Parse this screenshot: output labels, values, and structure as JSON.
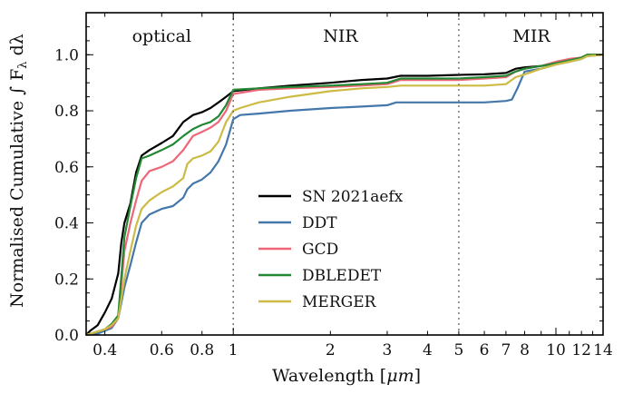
{
  "chart_data": {
    "type": "line",
    "xscale": "log",
    "xlim": [
      0.35,
      14
    ],
    "ylim": [
      0.0,
      1.15
    ],
    "xlabel": "Wavelength [",
    "xlabel_unit": "μm",
    "xlabel_end": "]",
    "ylabel": "Normalised Cumulative ",
    "ylabel_integral": "∫ F",
    "ylabel_sub": "λ",
    "ylabel_end": " dλ",
    "grid": false,
    "legend_position": "center",
    "x_major_ticks": [
      1,
      10
    ],
    "x_tick_labels": [
      {
        "value": 0.4,
        "label": "0.4"
      },
      {
        "value": 0.6,
        "label": "0.6"
      },
      {
        "value": 0.8,
        "label": "0.8"
      },
      {
        "value": 1,
        "label": "1"
      },
      {
        "value": 2,
        "label": "2"
      },
      {
        "value": 3,
        "label": "3"
      },
      {
        "value": 4,
        "label": "4"
      },
      {
        "value": 5,
        "label": "5"
      },
      {
        "value": 6,
        "label": "6"
      },
      {
        "value": 7,
        "label": "7"
      },
      {
        "value": 8,
        "label": "8"
      },
      {
        "value": 10,
        "label": "10"
      },
      {
        "value": 12,
        "label": "12"
      },
      {
        "value": 14,
        "label": "14"
      }
    ],
    "y_tick_labels": [
      {
        "value": 0.0,
        "label": "0.0"
      },
      {
        "value": 0.2,
        "label": "0.2"
      },
      {
        "value": 0.4,
        "label": "0.4"
      },
      {
        "value": 0.6,
        "label": "0.6"
      },
      {
        "value": 0.8,
        "label": "0.8"
      },
      {
        "value": 1.0,
        "label": "1.0"
      }
    ],
    "y_minor_step": 0.05,
    "region_boundaries": [
      1,
      5
    ],
    "regions": [
      {
        "name": "optical",
        "center": 0.6
      },
      {
        "name": "NIR",
        "center": 2.15
      },
      {
        "name": "MIR",
        "center": 8.4
      }
    ],
    "series": [
      {
        "name": "SN 2021aefx",
        "color": "#000000",
        "points": [
          [
            0.35,
            0.0
          ],
          [
            0.36,
            0.015
          ],
          [
            0.38,
            0.035
          ],
          [
            0.4,
            0.08
          ],
          [
            0.42,
            0.13
          ],
          [
            0.44,
            0.22
          ],
          [
            0.45,
            0.33
          ],
          [
            0.46,
            0.4
          ],
          [
            0.48,
            0.47
          ],
          [
            0.5,
            0.58
          ],
          [
            0.52,
            0.64
          ],
          [
            0.55,
            0.66
          ],
          [
            0.6,
            0.685
          ],
          [
            0.65,
            0.71
          ],
          [
            0.7,
            0.76
          ],
          [
            0.75,
            0.785
          ],
          [
            0.8,
            0.795
          ],
          [
            0.85,
            0.81
          ],
          [
            0.9,
            0.83
          ],
          [
            0.95,
            0.85
          ],
          [
            1.0,
            0.87
          ],
          [
            1.2,
            0.88
          ],
          [
            1.5,
            0.89
          ],
          [
            2.0,
            0.9
          ],
          [
            2.5,
            0.91
          ],
          [
            3.0,
            0.915
          ],
          [
            3.3,
            0.925
          ],
          [
            4.0,
            0.925
          ],
          [
            5.0,
            0.928
          ],
          [
            6.0,
            0.93
          ],
          [
            7.0,
            0.935
          ],
          [
            7.5,
            0.95
          ],
          [
            8.0,
            0.955
          ],
          [
            9.0,
            0.96
          ],
          [
            10.0,
            0.97
          ],
          [
            11.0,
            0.98
          ],
          [
            12.0,
            0.99
          ],
          [
            12.5,
            1.0
          ],
          [
            14.0,
            1.0
          ]
        ]
      },
      {
        "name": "DDT",
        "color": "#4477aa",
        "points": [
          [
            0.35,
            0.0
          ],
          [
            0.38,
            0.005
          ],
          [
            0.4,
            0.015
          ],
          [
            0.42,
            0.025
          ],
          [
            0.44,
            0.06
          ],
          [
            0.46,
            0.17
          ],
          [
            0.48,
            0.25
          ],
          [
            0.5,
            0.33
          ],
          [
            0.52,
            0.4
          ],
          [
            0.55,
            0.43
          ],
          [
            0.6,
            0.45
          ],
          [
            0.65,
            0.46
          ],
          [
            0.7,
            0.49
          ],
          [
            0.72,
            0.52
          ],
          [
            0.75,
            0.54
          ],
          [
            0.8,
            0.555
          ],
          [
            0.85,
            0.58
          ],
          [
            0.9,
            0.62
          ],
          [
            0.95,
            0.68
          ],
          [
            1.0,
            0.77
          ],
          [
            1.05,
            0.785
          ],
          [
            1.2,
            0.79
          ],
          [
            1.5,
            0.8
          ],
          [
            2.0,
            0.81
          ],
          [
            2.5,
            0.815
          ],
          [
            3.0,
            0.82
          ],
          [
            3.2,
            0.83
          ],
          [
            4.0,
            0.83
          ],
          [
            5.0,
            0.83
          ],
          [
            6.0,
            0.83
          ],
          [
            7.0,
            0.835
          ],
          [
            7.3,
            0.84
          ],
          [
            7.6,
            0.88
          ],
          [
            8.0,
            0.94
          ],
          [
            9.0,
            0.95
          ],
          [
            10.0,
            0.965
          ],
          [
            11.0,
            0.975
          ],
          [
            12.0,
            0.985
          ],
          [
            12.5,
            0.995
          ],
          [
            14.0,
            1.0
          ]
        ]
      },
      {
        "name": "GCD",
        "color": "#ee6677",
        "points": [
          [
            0.35,
            0.0
          ],
          [
            0.4,
            0.02
          ],
          [
            0.42,
            0.03
          ],
          [
            0.44,
            0.06
          ],
          [
            0.46,
            0.3
          ],
          [
            0.48,
            0.4
          ],
          [
            0.5,
            0.48
          ],
          [
            0.52,
            0.55
          ],
          [
            0.55,
            0.585
          ],
          [
            0.6,
            0.6
          ],
          [
            0.65,
            0.62
          ],
          [
            0.7,
            0.66
          ],
          [
            0.75,
            0.71
          ],
          [
            0.8,
            0.725
          ],
          [
            0.85,
            0.74
          ],
          [
            0.9,
            0.76
          ],
          [
            0.95,
            0.8
          ],
          [
            1.0,
            0.86
          ],
          [
            1.2,
            0.875
          ],
          [
            1.5,
            0.88
          ],
          [
            2.0,
            0.885
          ],
          [
            2.5,
            0.89
          ],
          [
            3.0,
            0.895
          ],
          [
            3.3,
            0.91
          ],
          [
            4.0,
            0.91
          ],
          [
            5.0,
            0.91
          ],
          [
            6.0,
            0.915
          ],
          [
            7.0,
            0.92
          ],
          [
            7.5,
            0.94
          ],
          [
            8.0,
            0.95
          ],
          [
            9.0,
            0.96
          ],
          [
            10.0,
            0.975
          ],
          [
            11.0,
            0.985
          ],
          [
            12.0,
            0.99
          ],
          [
            12.5,
            1.0
          ],
          [
            14.0,
            1.0
          ]
        ]
      },
      {
        "name": "DBLEDET",
        "color": "#228833",
        "points": [
          [
            0.35,
            0.0
          ],
          [
            0.4,
            0.02
          ],
          [
            0.42,
            0.04
          ],
          [
            0.44,
            0.07
          ],
          [
            0.46,
            0.35
          ],
          [
            0.48,
            0.46
          ],
          [
            0.5,
            0.56
          ],
          [
            0.52,
            0.63
          ],
          [
            0.55,
            0.64
          ],
          [
            0.6,
            0.66
          ],
          [
            0.65,
            0.68
          ],
          [
            0.7,
            0.71
          ],
          [
            0.75,
            0.735
          ],
          [
            0.8,
            0.75
          ],
          [
            0.85,
            0.76
          ],
          [
            0.9,
            0.78
          ],
          [
            0.95,
            0.82
          ],
          [
            1.0,
            0.875
          ],
          [
            1.2,
            0.88
          ],
          [
            1.5,
            0.885
          ],
          [
            2.0,
            0.89
          ],
          [
            2.5,
            0.895
          ],
          [
            3.0,
            0.9
          ],
          [
            3.3,
            0.915
          ],
          [
            4.0,
            0.915
          ],
          [
            5.0,
            0.915
          ],
          [
            6.0,
            0.92
          ],
          [
            7.0,
            0.925
          ],
          [
            7.5,
            0.94
          ],
          [
            8.0,
            0.95
          ],
          [
            9.0,
            0.96
          ],
          [
            10.0,
            0.97
          ],
          [
            11.0,
            0.98
          ],
          [
            12.0,
            0.99
          ],
          [
            12.5,
            1.0
          ],
          [
            14.0,
            1.0
          ]
        ]
      },
      {
        "name": "MERGER",
        "color": "#ccbb44",
        "points": [
          [
            0.35,
            0.0
          ],
          [
            0.4,
            0.02
          ],
          [
            0.42,
            0.035
          ],
          [
            0.44,
            0.06
          ],
          [
            0.46,
            0.2
          ],
          [
            0.48,
            0.3
          ],
          [
            0.5,
            0.39
          ],
          [
            0.52,
            0.45
          ],
          [
            0.55,
            0.48
          ],
          [
            0.6,
            0.51
          ],
          [
            0.65,
            0.53
          ],
          [
            0.7,
            0.56
          ],
          [
            0.72,
            0.61
          ],
          [
            0.75,
            0.63
          ],
          [
            0.8,
            0.64
          ],
          [
            0.85,
            0.655
          ],
          [
            0.9,
            0.69
          ],
          [
            0.95,
            0.76
          ],
          [
            1.0,
            0.8
          ],
          [
            1.05,
            0.81
          ],
          [
            1.2,
            0.83
          ],
          [
            1.5,
            0.85
          ],
          [
            2.0,
            0.87
          ],
          [
            2.5,
            0.88
          ],
          [
            3.0,
            0.885
          ],
          [
            3.3,
            0.89
          ],
          [
            4.0,
            0.89
          ],
          [
            5.0,
            0.89
          ],
          [
            6.0,
            0.89
          ],
          [
            7.0,
            0.895
          ],
          [
            7.5,
            0.92
          ],
          [
            8.0,
            0.93
          ],
          [
            9.0,
            0.95
          ],
          [
            10.0,
            0.965
          ],
          [
            11.0,
            0.975
          ],
          [
            12.0,
            0.985
          ],
          [
            12.5,
            0.995
          ],
          [
            14.0,
            1.0
          ]
        ]
      }
    ]
  }
}
